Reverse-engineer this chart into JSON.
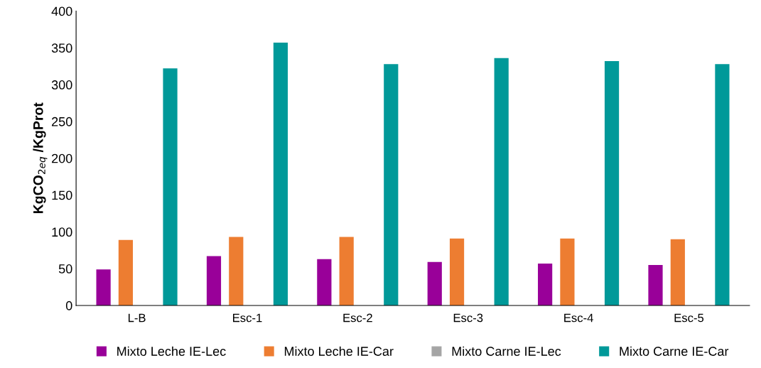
{
  "chart_data": {
    "type": "bar",
    "ylabel": "KgCO$_{2eq}$ /KgProt",
    "categories": [
      "L-B",
      "Esc-1",
      "Esc-2",
      "Esc-3",
      "Esc-4",
      "Esc-5"
    ],
    "series": [
      {
        "name": "Mixto Leche IE-Lec",
        "color": "#990099",
        "values": [
          49,
          67,
          63,
          59,
          57,
          55
        ]
      },
      {
        "name": "Mixto Leche IE-Car",
        "color": "#ed7d31",
        "values": [
          89,
          93,
          93,
          91,
          91,
          90
        ]
      },
      {
        "name": "Mixto Carne IE-Lec",
        "color": "#a5a5a5",
        "values": [
          null,
          null,
          null,
          null,
          null,
          null
        ]
      },
      {
        "name": "Mixto Carne IE-Car",
        "color": "#009999",
        "values": [
          322,
          357,
          328,
          336,
          332,
          328
        ]
      }
    ],
    "ylim": [
      0,
      400
    ],
    "yticks": [
      0,
      50,
      100,
      150,
      200,
      250,
      300,
      350,
      400
    ],
    "grid": false,
    "legend": "bottom"
  }
}
